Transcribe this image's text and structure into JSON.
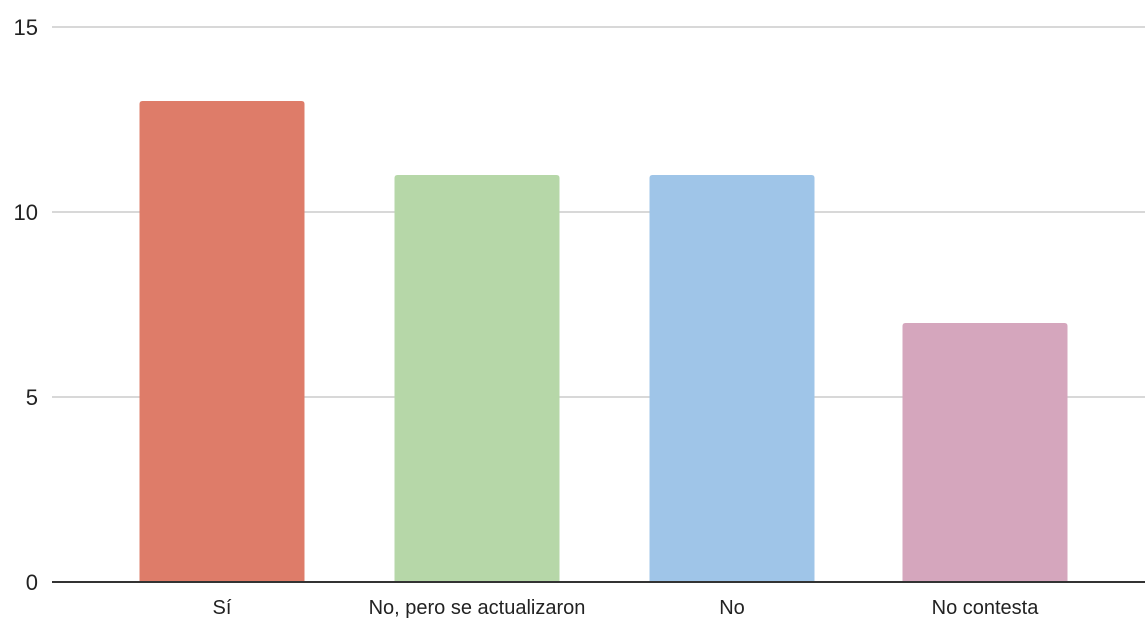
{
  "chart_data": {
    "type": "bar",
    "title": "",
    "xlabel": "",
    "ylabel": "",
    "categories": [
      "Sí",
      "No, pero se actualizaron",
      "No",
      "No contesta"
    ],
    "values": [
      13,
      11,
      11,
      7
    ],
    "colors": [
      "#de7c69",
      "#b6d7a8",
      "#9fc5e8",
      "#d5a6bd"
    ],
    "ylim": [
      0,
      15
    ],
    "yticks": [
      0,
      5,
      10,
      15
    ],
    "grid": true,
    "legend": "none"
  }
}
